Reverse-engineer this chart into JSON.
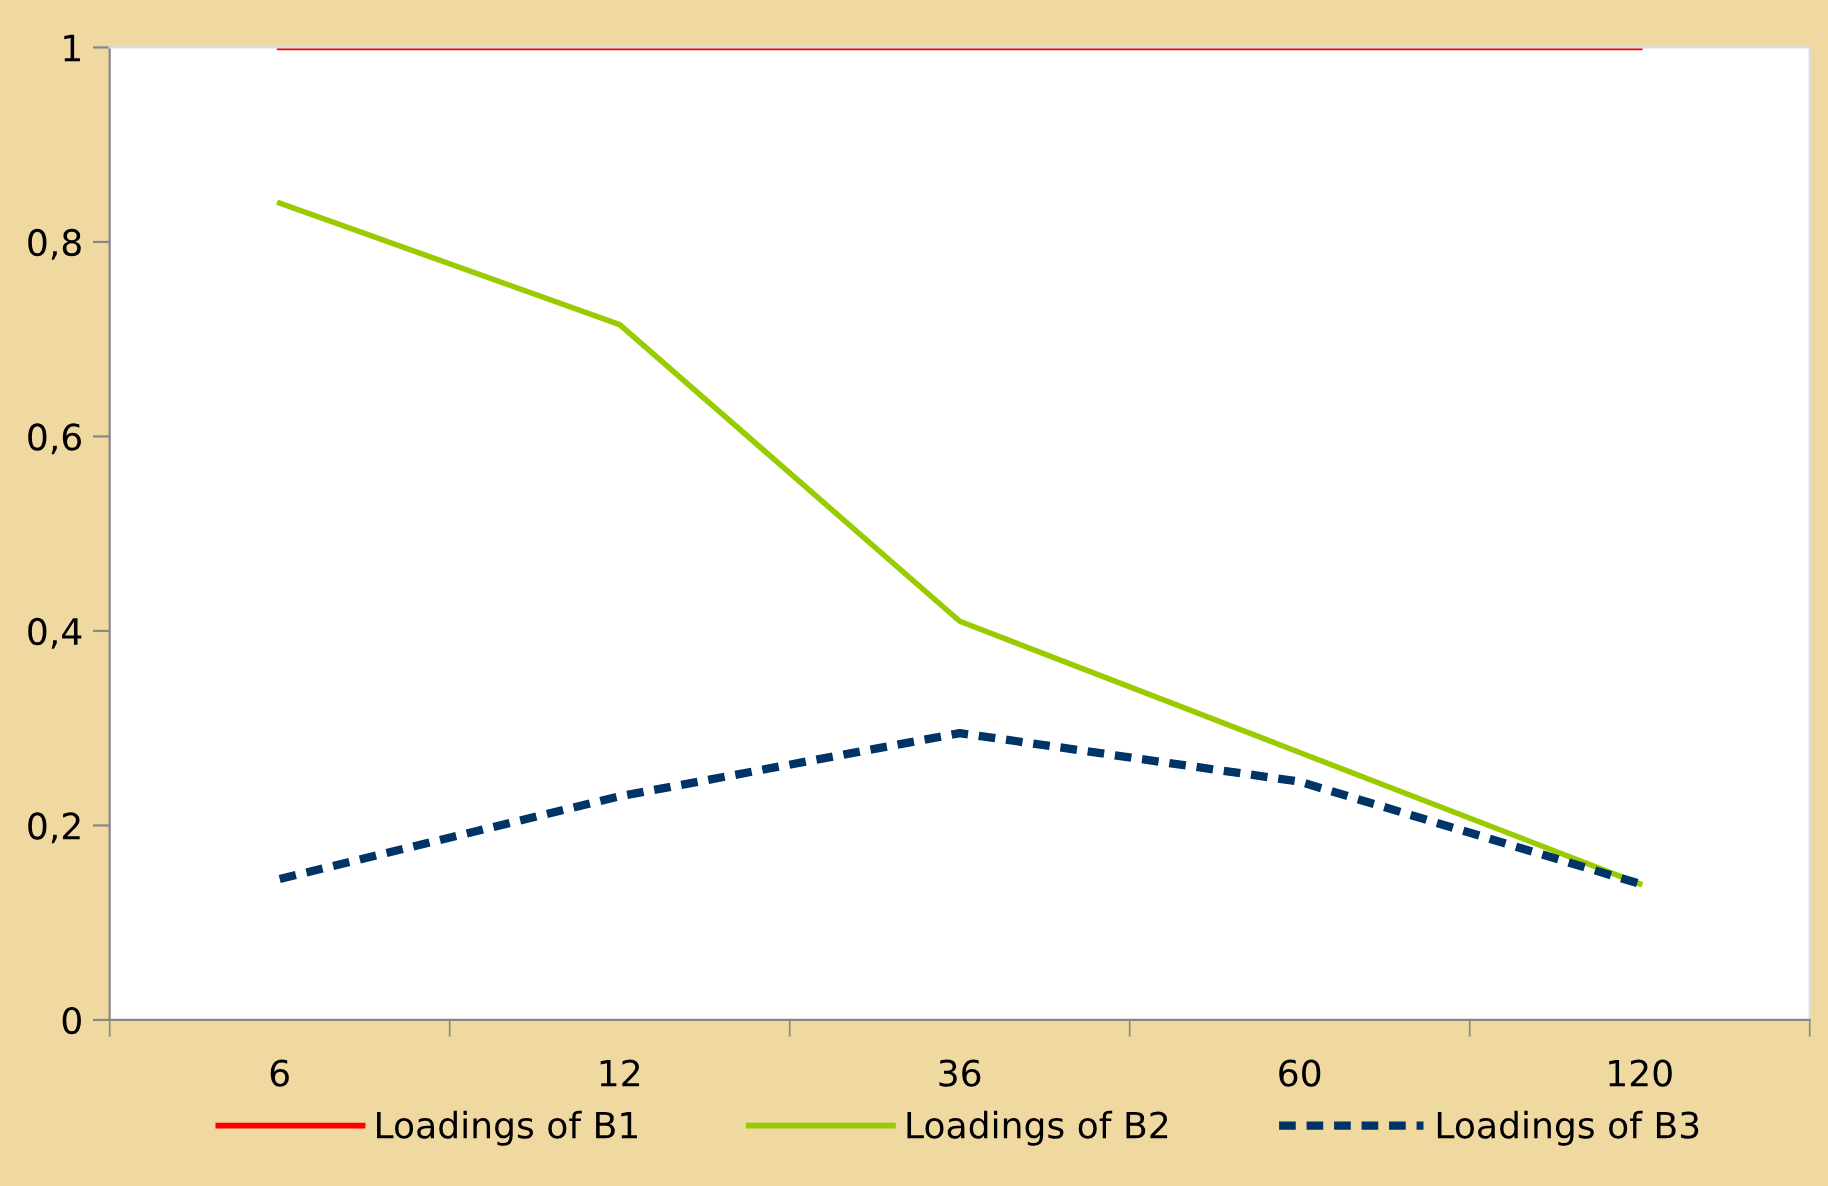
{
  "chart_data": {
    "type": "line",
    "categories": [
      "6",
      "12",
      "36",
      "60",
      "120"
    ],
    "series": [
      {
        "name": "Loadings of B1",
        "color": "#ff0000",
        "values": [
          1,
          1,
          1,
          1,
          1
        ],
        "line_style": "solid"
      },
      {
        "name": "Loadings of B2",
        "color": "#99cc00",
        "values": [
          0.84,
          0.715,
          0.41,
          0.275,
          0.14
        ],
        "line_style": "solid"
      },
      {
        "name": "Loadings of B3",
        "color": "#003366",
        "values": [
          0.145,
          0.23,
          0.295,
          0.245,
          0.14
        ],
        "line_style": "dashed"
      }
    ],
    "ylim": [
      0,
      1
    ],
    "yticks": [
      0,
      {
        "value": 0.2,
        "label": "0,2"
      },
      {
        "value": 0.4,
        "label": "0,4"
      },
      {
        "value": 0.6,
        "label": "0,6"
      },
      {
        "value": 0.8,
        "label": "0,8"
      },
      1
    ],
    "grid": false,
    "legend": "bottom",
    "marker": "none"
  }
}
